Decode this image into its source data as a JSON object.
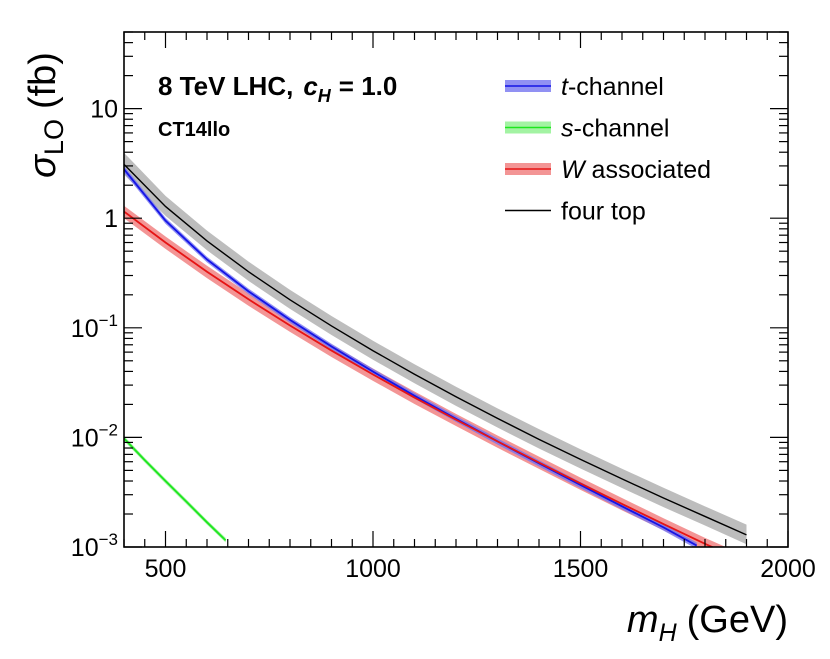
{
  "chart_data": {
    "type": "line",
    "title_line1_prefix": "8 TeV LHC,",
    "title_line1_symbol": "c",
    "title_line1_subscript": "H",
    "title_line1_value": "= 1.0",
    "title_line2": "CT14llo",
    "xlabel_symbol": "m",
    "xlabel_subscript": "H",
    "xlabel_unit": "(GeV)",
    "ylabel_symbol": "σ",
    "ylabel_subscript": "LO",
    "ylabel_unit": "(fb)",
    "y_scale": "log",
    "xlim": [
      400,
      2000
    ],
    "ylim": [
      0.001,
      50
    ],
    "x_ticks": [
      {
        "value": 500,
        "label": "500"
      },
      {
        "value": 1000,
        "label": "1000"
      },
      {
        "value": 1500,
        "label": "1500"
      },
      {
        "value": 2000,
        "label": "2000"
      }
    ],
    "y_ticks": [
      {
        "value": 0.001,
        "base": "10",
        "exp": "−3",
        "label": ""
      },
      {
        "value": 0.01,
        "base": "10",
        "exp": "−2",
        "label": ""
      },
      {
        "value": 0.1,
        "base": "10",
        "exp": "−1",
        "label": ""
      },
      {
        "value": 1,
        "base": "",
        "exp": "",
        "label": "1"
      },
      {
        "value": 10,
        "base": "",
        "exp": "",
        "label": "10"
      }
    ],
    "legend_position": "top-right",
    "series": [
      {
        "key": "t",
        "name_italic": "t",
        "name_rest": "-channel",
        "color": "#1414e6",
        "band_color": "#7575f0",
        "x": [
          400,
          500,
          600,
          700,
          800,
          900,
          1000,
          1100,
          1200,
          1300,
          1400,
          1500,
          1600,
          1700,
          1780
        ],
        "y": [
          2.8,
          0.95,
          0.42,
          0.215,
          0.118,
          0.0675,
          0.0398,
          0.024,
          0.0148,
          0.0092,
          0.0058,
          0.00368,
          0.00235,
          0.00151,
          0.00103
        ],
        "lo": [
          2.6,
          0.89,
          0.395,
          0.203,
          0.111,
          0.0635,
          0.0373,
          0.0225,
          0.01385,
          0.0086,
          0.00542,
          0.00344,
          0.0022,
          0.00141,
          0.00096
        ],
        "hi": [
          3.0,
          1.01,
          0.445,
          0.228,
          0.125,
          0.0715,
          0.0423,
          0.0255,
          0.0157,
          0.0098,
          0.00618,
          0.00392,
          0.0025,
          0.00161,
          0.0011
        ]
      },
      {
        "key": "s",
        "name_italic": "s",
        "name_rest": "-channel",
        "color": "#1ee61e",
        "band_color": "#8cf08c",
        "x": [
          400,
          450,
          500,
          550,
          600,
          645
        ],
        "y": [
          0.0098,
          0.0062,
          0.004,
          0.0026,
          0.00168,
          0.00115
        ],
        "lo": [
          0.0093,
          0.0059,
          0.0038,
          0.00247,
          0.0016,
          0.0011
        ],
        "hi": [
          0.0103,
          0.0065,
          0.0042,
          0.00273,
          0.00176,
          0.00121
        ]
      },
      {
        "key": "W",
        "name_italic": "W",
        "name_rest": " associated",
        "color": "#e61414",
        "band_color": "#f07a7a",
        "x": [
          400,
          500,
          600,
          700,
          800,
          900,
          1000,
          1100,
          1200,
          1300,
          1400,
          1500,
          1600,
          1700,
          1800,
          1850
        ],
        "y": [
          1.15,
          0.6,
          0.325,
          0.182,
          0.105,
          0.062,
          0.0375,
          0.0231,
          0.0145,
          0.0092,
          0.0059,
          0.0038,
          0.00247,
          0.00162,
          0.00107,
          0.00088
        ],
        "lo": [
          1.0,
          0.525,
          0.284,
          0.159,
          0.0918,
          0.0542,
          0.0328,
          0.0202,
          0.0127,
          0.00805,
          0.00516,
          0.00332,
          0.00216,
          0.00142,
          0.00094,
          0.00077
        ],
        "hi": [
          1.3,
          0.68,
          0.368,
          0.206,
          0.119,
          0.0702,
          0.0425,
          0.0262,
          0.0164,
          0.0104,
          0.00668,
          0.0043,
          0.0028,
          0.00183,
          0.00121,
          0.001
        ]
      },
      {
        "key": "four",
        "name_italic": "",
        "name_rest": "four top",
        "color": "#000000",
        "band_color": "#bdbdbd",
        "x": [
          400,
          500,
          600,
          700,
          800,
          900,
          1000,
          1100,
          1200,
          1300,
          1400,
          1500,
          1600,
          1700,
          1800,
          1900
        ],
        "y": [
          3.1,
          1.28,
          0.62,
          0.325,
          0.18,
          0.104,
          0.0618,
          0.0377,
          0.0235,
          0.0149,
          0.0096,
          0.0063,
          0.00418,
          0.0028,
          0.0019,
          0.00129
        ],
        "lo": [
          2.5,
          1.05,
          0.51,
          0.268,
          0.149,
          0.086,
          0.0511,
          0.0312,
          0.0194,
          0.0123,
          0.00792,
          0.0052,
          0.00345,
          0.00231,
          0.00157,
          0.00106
        ],
        "hi": [
          3.95,
          1.6,
          0.77,
          0.402,
          0.222,
          0.128,
          0.0762,
          0.0465,
          0.029,
          0.0184,
          0.0119,
          0.0078,
          0.00518,
          0.00347,
          0.00235,
          0.0016
        ]
      }
    ]
  }
}
